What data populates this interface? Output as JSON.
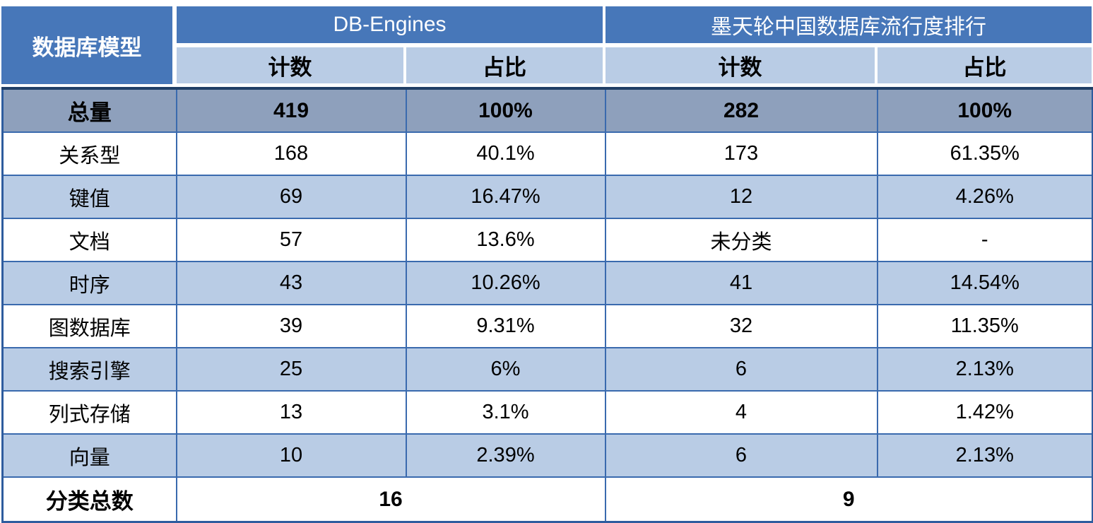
{
  "chart_data": {
    "type": "table",
    "corner_header": "数据库模型",
    "groups": [
      {
        "label": "DB-Engines",
        "columns": [
          "计数",
          "占比"
        ]
      },
      {
        "label": "墨天轮中国数据库流行度排行",
        "columns": [
          "计数",
          "占比"
        ]
      }
    ],
    "total_row": {
      "label": "总量",
      "values": [
        "419",
        "100%",
        "282",
        "100%"
      ]
    },
    "rows": [
      {
        "label": "关系型",
        "values": [
          "168",
          "40.1%",
          "173",
          "61.35%"
        ]
      },
      {
        "label": "键值",
        "values": [
          "69",
          "16.47%",
          "12",
          "4.26%"
        ]
      },
      {
        "label": "文档",
        "values": [
          "57",
          "13.6%",
          "未分类",
          "-"
        ]
      },
      {
        "label": "时序",
        "values": [
          "43",
          "10.26%",
          "41",
          "14.54%"
        ]
      },
      {
        "label": "图数据库",
        "values": [
          "39",
          "9.31%",
          "32",
          "11.35%"
        ]
      },
      {
        "label": "搜索引擎",
        "values": [
          "25",
          "6%",
          "6",
          "2.13%"
        ]
      },
      {
        "label": "列式存储",
        "values": [
          "13",
          "3.1%",
          "4",
          "1.42%"
        ]
      },
      {
        "label": "向量",
        "values": [
          "10",
          "2.39%",
          "6",
          "2.13%"
        ]
      }
    ],
    "footer_row": {
      "label": "分类总数",
      "values": [
        "16",
        "9"
      ]
    },
    "colors": {
      "header_blue": "#4777B9",
      "light_blue": "#B9CCE5",
      "total_gray": "#8EA0BC",
      "grid_blue": "#3A6AAE",
      "outer_border": "#2E5C9E",
      "dark_line": "#203F66",
      "header_text": "#FFFFFF",
      "body_text": "#000000"
    }
  }
}
